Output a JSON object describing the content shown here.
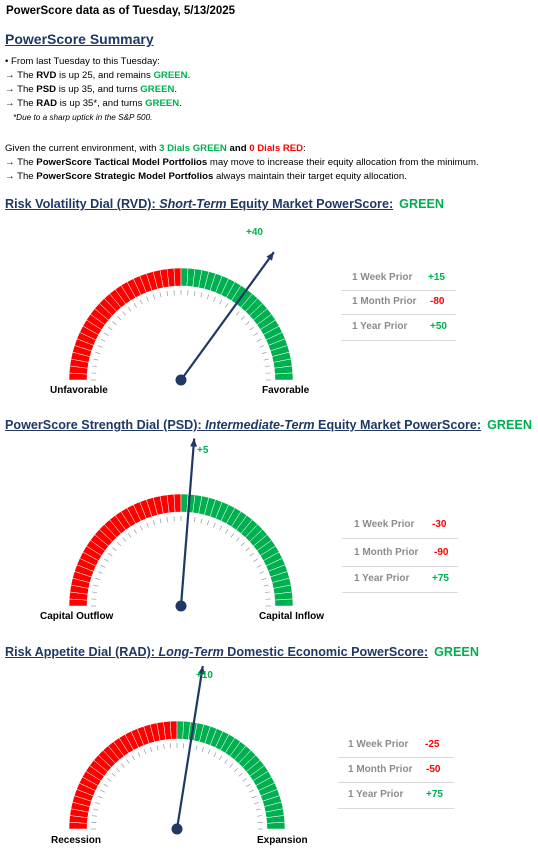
{
  "header": "PowerScore data as of Tuesday, 5/13/2025",
  "summary": {
    "title": "PowerScore Summary",
    "intro": "• From last Tuesday to this Tuesday:",
    "lines": [
      {
        "arrow": "→",
        "pre": "The ",
        "dial": "RVD",
        "mid": " is up 25, and remains ",
        "status": "GREEN",
        "end": "."
      },
      {
        "arrow": "→",
        "pre": "The ",
        "dial": "PSD",
        "mid": " is up 35, and turns ",
        "status": "GREEN",
        "end": "."
      },
      {
        "arrow": "→",
        "pre": "The ",
        "dial": "RAD",
        "mid": " is up 35*, and turns ",
        "status": "GREEN",
        "end": "."
      }
    ],
    "footnote": "*Due to a sharp uptick in the S&P 500.",
    "env_pre": "Given the current environment, with ",
    "env_green": "3 Dials GREEN",
    "env_and": " and ",
    "env_red": "0 Dials RED",
    "env_end": ":",
    "tactical_pre": "→ The ",
    "tactical_bold": "PowerScore Tactical Model Portfolios",
    "tactical_end": " may move to increase their equity allocation from the minimum.",
    "strategic_pre": "→ The ",
    "strategic_bold": "PowerScore Strategic Model Portfolios",
    "strategic_end": " always maintain their target equity allocation."
  },
  "dials": [
    {
      "title_pre": "Risk Volatility Dial (RVD):  ",
      "title_em": "Short-Term",
      "title_post": " Equity Market PowerScore:",
      "status": "GREEN",
      "value": "+40",
      "value_num": 40,
      "left_label": "Unfavorable",
      "right_label": "Favorable",
      "prior": [
        {
          "label": "1 Week Prior",
          "value": "+15",
          "color": "#00b050"
        },
        {
          "label": "1 Month Prior",
          "value": "-80",
          "color": "#ff0000"
        },
        {
          "label": "1 Year Prior",
          "value": "+50",
          "color": "#00b050"
        }
      ]
    },
    {
      "title_pre": "PowerScore Strength Dial (PSD): ",
      "title_em": "Intermediate-Term",
      "title_post": " Equity Market PowerScore:",
      "status": "GREEN",
      "value": "+5",
      "value_num": 5,
      "left_label": "Capital Outflow",
      "right_label": "Capital Inflow",
      "prior": [
        {
          "label": "1 Week Prior",
          "value": "-30",
          "color": "#ff0000"
        },
        {
          "label": "1 Month Prior",
          "value": "-90",
          "color": "#ff0000"
        },
        {
          "label": "1 Year Prior",
          "value": "+75",
          "color": "#00b050"
        }
      ]
    },
    {
      "title_pre": "Risk Appetite Dial (RAD):  ",
      "title_em": "Long-Term",
      "title_post": " Domestic Economic PowerScore:",
      "status": "GREEN",
      "value": "+10",
      "value_num": 10,
      "left_label": "Recession",
      "right_label": "Expansion",
      "prior": [
        {
          "label": "1 Week Prior",
          "value": "-25",
          "color": "#ff0000"
        },
        {
          "label": "1 Month Prior",
          "value": "-50",
          "color": "#ff0000"
        },
        {
          "label": "1 Year Prior",
          "value": "+75",
          "color": "#00b050"
        }
      ]
    }
  ],
  "colors": {
    "green": "#00b050",
    "red": "#ff0000",
    "navy": "#1f3864",
    "gray": "#8c8c8c"
  }
}
